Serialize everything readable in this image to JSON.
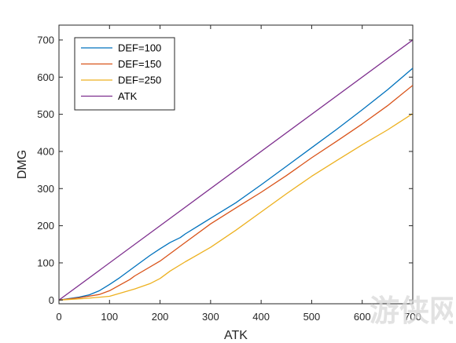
{
  "chart_data": {
    "type": "line",
    "title": "",
    "xlabel": "ATK",
    "ylabel": "DMG",
    "xlim": [
      0,
      700
    ],
    "ylim": [
      -10,
      740
    ],
    "xticks": [
      0,
      100,
      200,
      300,
      400,
      500,
      600,
      700
    ],
    "yticks": [
      0,
      100,
      200,
      300,
      400,
      500,
      600,
      700
    ],
    "grid": false,
    "legend_position": "top-left",
    "series": [
      {
        "name": "DEF=100",
        "color": "#0072BD",
        "x": [
          0,
          20,
          40,
          60,
          80,
          100,
          120,
          140,
          160,
          180,
          200,
          220,
          240,
          250,
          300,
          350,
          400,
          450,
          500,
          550,
          600,
          650,
          700
        ],
        "y": [
          0,
          4,
          8,
          14,
          25,
          42,
          60,
          80,
          100,
          120,
          138,
          155,
          168,
          178,
          220,
          262,
          310,
          360,
          410,
          460,
          512,
          566,
          624
        ]
      },
      {
        "name": "DEF=150",
        "color": "#D95319",
        "x": [
          0,
          40,
          80,
          100,
          120,
          140,
          150,
          200,
          250,
          300,
          350,
          400,
          450,
          500,
          550,
          600,
          650,
          700
        ],
        "y": [
          0,
          6,
          15,
          25,
          40,
          55,
          65,
          105,
          155,
          205,
          248,
          290,
          335,
          383,
          428,
          474,
          523,
          578
        ]
      },
      {
        "name": "DEF=250",
        "color": "#EDB120",
        "x": [
          0,
          50,
          100,
          150,
          180,
          200,
          220,
          250,
          300,
          350,
          400,
          450,
          500,
          550,
          600,
          650,
          700
        ],
        "y": [
          0,
          4,
          10,
          30,
          44,
          58,
          78,
          103,
          142,
          188,
          237,
          286,
          333,
          376,
          418,
          458,
          502
        ]
      },
      {
        "name": "ATK",
        "color": "#7E2F8E",
        "x": [
          0,
          700
        ],
        "y": [
          0,
          700
        ]
      }
    ]
  },
  "watermark": {
    "text": "游侠网"
  }
}
